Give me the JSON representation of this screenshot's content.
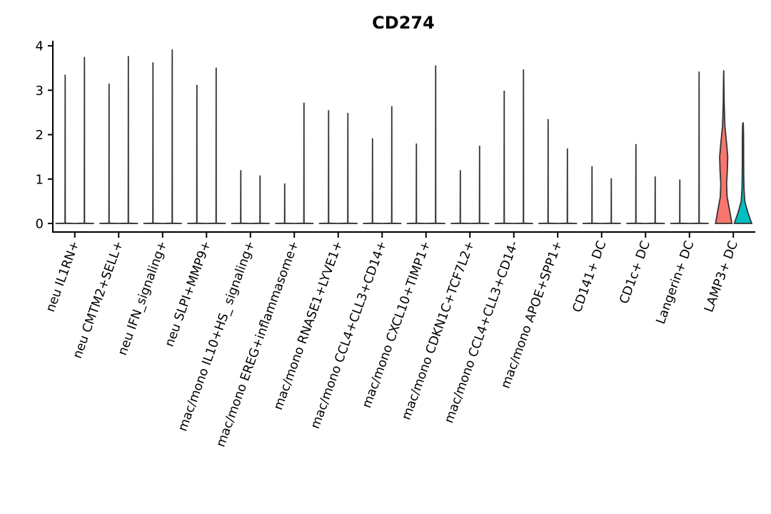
{
  "chart_data": {
    "type": "violin",
    "title": "CD274",
    "xlabel": "",
    "ylabel": "",
    "ylim": [
      -0.2,
      4.15
    ],
    "yticks": [
      0,
      1,
      2,
      3,
      4
    ],
    "grid": false,
    "legend": "none",
    "categories": [
      "neu IL1RN+",
      "neu CMTM2+SELL+",
      "neu IFN_signaling+",
      "neu SLPI+MMP9+",
      "mac/mono IL10+HS_ signaling+",
      "mac/mono EREG+inflammasome+",
      "mac/mono RNASE1+LYVE1+",
      "mac/mono CCL4+CLL3+CD14+",
      "mac/mono CXCL10+TIMP1+",
      "mac/mono CDKN1C+TCF7L2+",
      "mac/mono CCL4+CLL3+CD14-",
      "mac/mono APOE+SPP1+",
      "CD141+ DC",
      "CD1c+ DC",
      "Langerin+ DC",
      "LAMP3+ DC"
    ],
    "series": [
      {
        "color": "#F8766D",
        "max": [
          3.35,
          3.15,
          3.63,
          3.12,
          1.2,
          0.9,
          2.55,
          1.92,
          1.8,
          1.2,
          2.99,
          2.35,
          1.29,
          1.79,
          0.99,
          3.45
        ]
      },
      {
        "color": "#00BFC4",
        "max": [
          3.75,
          3.77,
          3.92,
          3.51,
          1.08,
          2.72,
          2.49,
          2.64,
          3.56,
          1.75,
          3.47,
          1.69,
          1.02,
          1.06,
          3.42,
          2.28
        ]
      }
    ],
    "lamp3_profiles": {
      "left": [
        [
          0,
          0.85
        ],
        [
          0.3,
          0.6
        ],
        [
          0.6,
          0.35
        ],
        [
          0.9,
          0.3
        ],
        [
          1.2,
          0.38
        ],
        [
          1.5,
          0.42
        ],
        [
          1.8,
          0.3
        ],
        [
          2.2,
          0.12
        ],
        [
          2.7,
          0.05
        ],
        [
          3.2,
          0.02
        ],
        [
          3.45,
          0.0
        ]
      ],
      "right": [
        [
          0,
          0.9
        ],
        [
          0.25,
          0.5
        ],
        [
          0.5,
          0.18
        ],
        [
          0.8,
          0.1
        ],
        [
          1.1,
          0.08
        ],
        [
          1.5,
          0.06
        ],
        [
          1.9,
          0.06
        ],
        [
          2.2,
          0.04
        ],
        [
          2.28,
          0.0
        ]
      ]
    }
  }
}
